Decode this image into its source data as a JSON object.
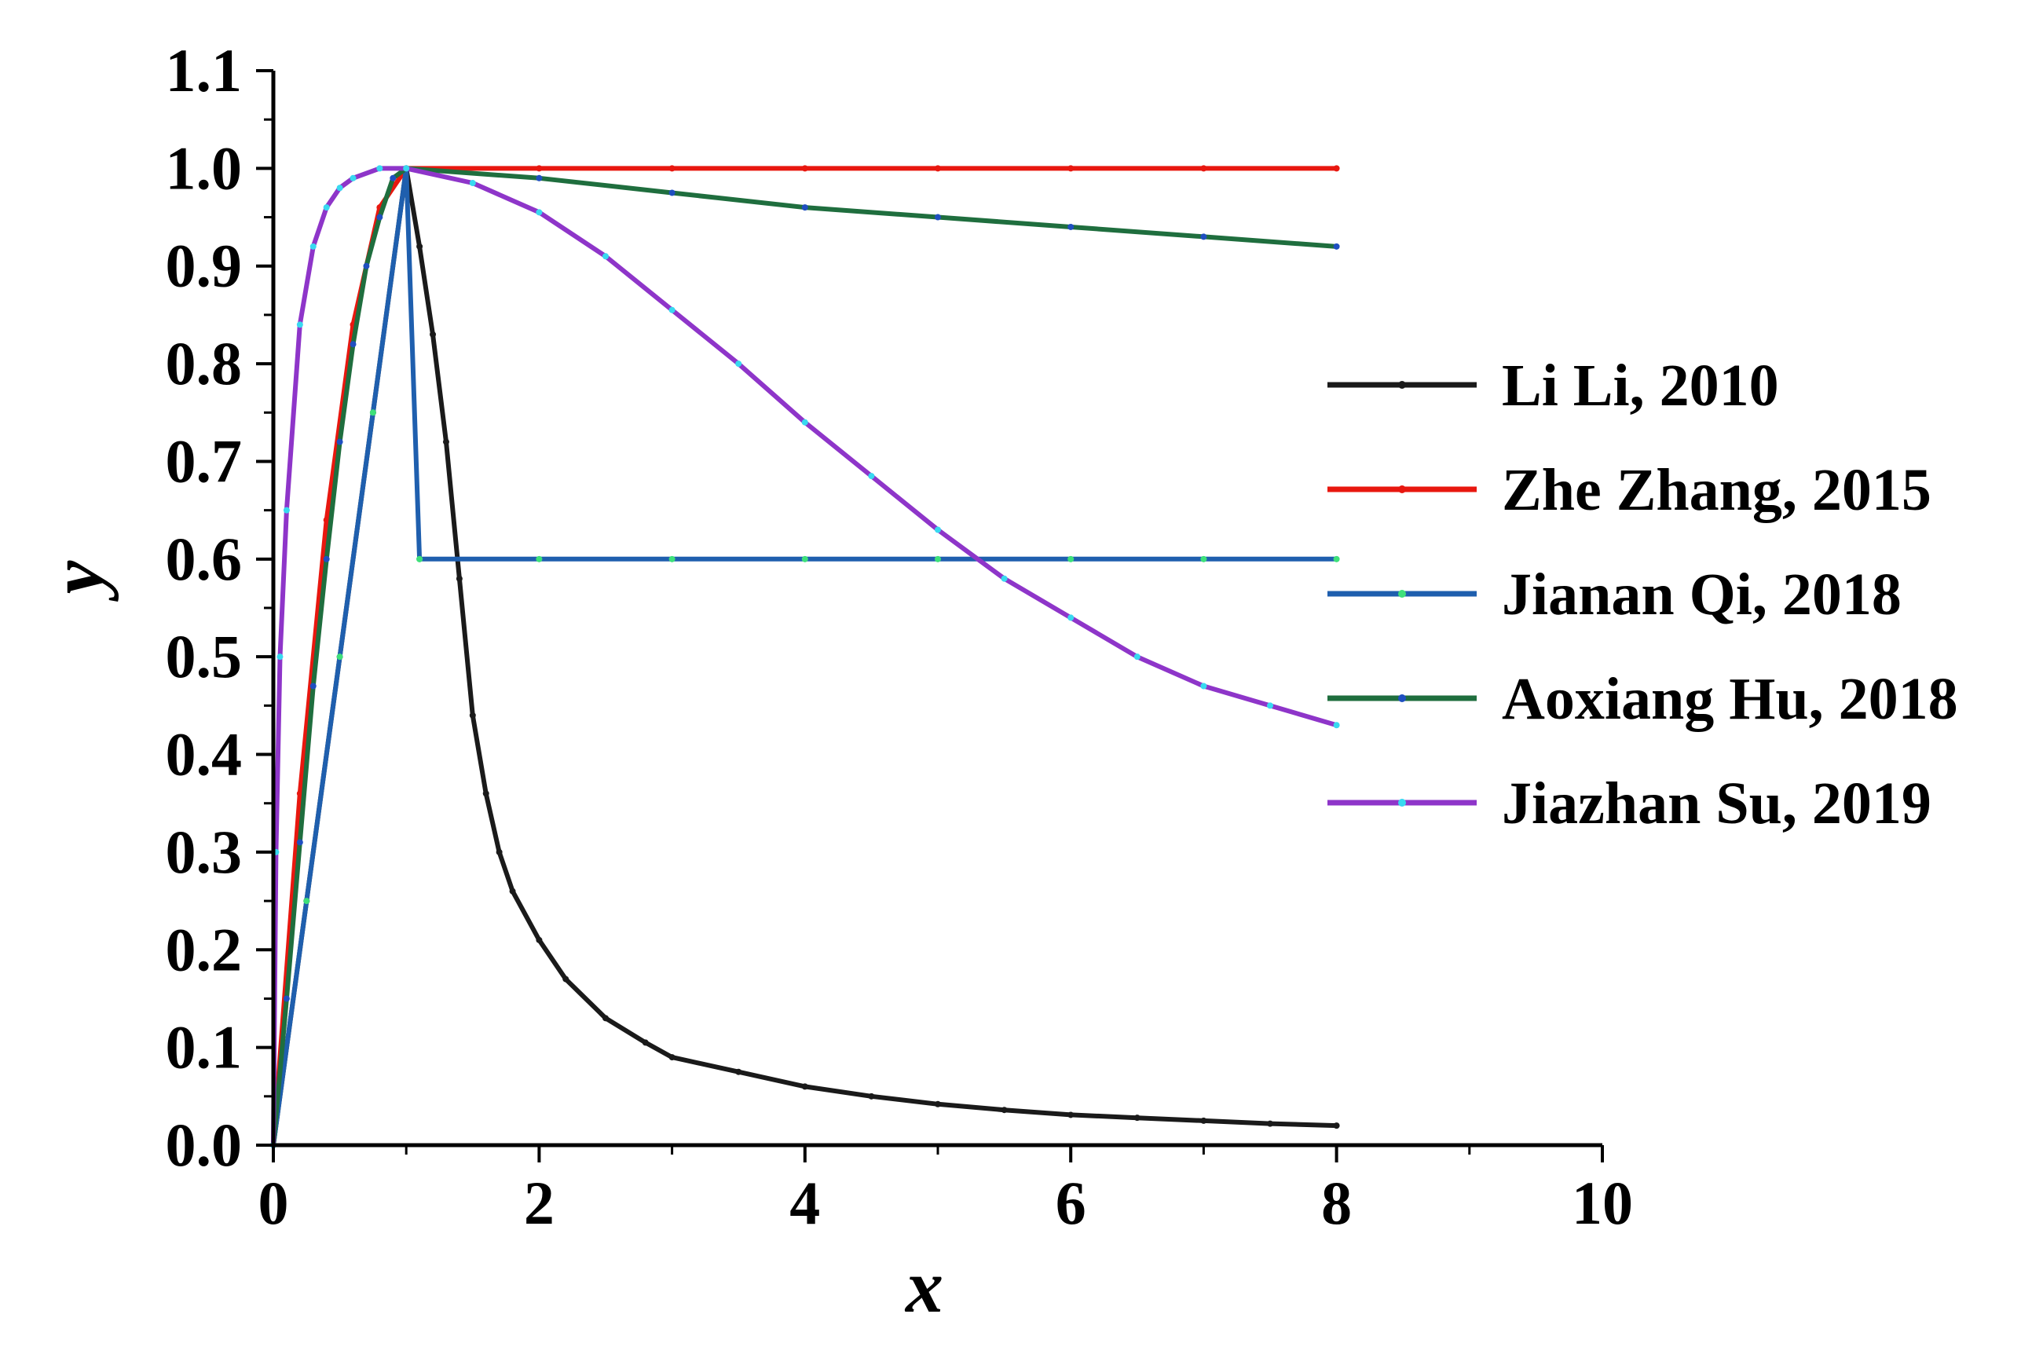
{
  "chart_data": {
    "type": "line",
    "title": "",
    "xlabel": "x",
    "ylabel": "y",
    "xlim": [
      0,
      10
    ],
    "ylim": [
      0,
      1.1
    ],
    "xticks": [
      "0",
      "2",
      "4",
      "6",
      "8",
      "10"
    ],
    "yticks": [
      "0.0",
      "0.1",
      "0.2",
      "0.3",
      "0.4",
      "0.5",
      "0.6",
      "0.7",
      "0.8",
      "0.9",
      "1.0",
      "1.1"
    ],
    "grid": false,
    "legend_position": "right",
    "series": [
      {
        "name": "Li Li, 2010",
        "color": "#1a1a1a",
        "marker_color": "#1a1a1a",
        "x": [
          0,
          0.25,
          0.5,
          0.75,
          1.0,
          1.1,
          1.2,
          1.3,
          1.4,
          1.5,
          1.6,
          1.7,
          1.8,
          2.0,
          2.2,
          2.5,
          2.8,
          3.0,
          3.5,
          4.0,
          4.5,
          5.0,
          5.5,
          6.0,
          6.5,
          7.0,
          7.5,
          8.0
        ],
        "y": [
          0,
          0.25,
          0.5,
          0.75,
          1.0,
          0.92,
          0.83,
          0.72,
          0.58,
          0.44,
          0.36,
          0.3,
          0.26,
          0.21,
          0.17,
          0.13,
          0.105,
          0.09,
          0.075,
          0.06,
          0.05,
          0.042,
          0.036,
          0.031,
          0.028,
          0.025,
          0.022,
          0.02
        ]
      },
      {
        "name": "Zhe Zhang, 2015",
        "color": "#e8170f",
        "marker_color": "#e8170f",
        "x": [
          0,
          0.2,
          0.4,
          0.6,
          0.8,
          1.0,
          2.0,
          3.0,
          4.0,
          5.0,
          6.0,
          7.0,
          8.0
        ],
        "y": [
          0,
          0.36,
          0.64,
          0.84,
          0.96,
          1.0,
          1.0,
          1.0,
          1.0,
          1.0,
          1.0,
          1.0,
          1.0
        ]
      },
      {
        "name": "Jianan Qi, 2018",
        "color": "#1f5fae",
        "marker_color": "#3ee07a",
        "x": [
          0,
          0.25,
          0.5,
          0.75,
          1.0,
          1.1,
          1.1,
          2.0,
          3.0,
          4.0,
          5.0,
          6.0,
          7.0,
          8.0
        ],
        "y": [
          0,
          0.25,
          0.5,
          0.75,
          1.0,
          0.6,
          0.6,
          0.6,
          0.6,
          0.6,
          0.6,
          0.6,
          0.6,
          0.6
        ]
      },
      {
        "name": "Aoxiang Hu, 2018",
        "color": "#1f6e3e",
        "marker_color": "#1f4fc0",
        "x": [
          0,
          0.1,
          0.2,
          0.3,
          0.4,
          0.5,
          0.6,
          0.7,
          0.8,
          0.9,
          1.0,
          2.0,
          3.0,
          4.0,
          5.0,
          6.0,
          7.0,
          8.0
        ],
        "y": [
          0,
          0.15,
          0.31,
          0.47,
          0.6,
          0.72,
          0.82,
          0.9,
          0.95,
          0.99,
          1.0,
          0.99,
          0.975,
          0.96,
          0.95,
          0.94,
          0.93,
          0.92
        ]
      },
      {
        "name": "Jiazhan Su, 2019",
        "color": "#8e35c9",
        "marker_color": "#38d9f0",
        "x": [
          0,
          0.02,
          0.05,
          0.1,
          0.2,
          0.3,
          0.4,
          0.5,
          0.6,
          0.8,
          1.0,
          1.5,
          2.0,
          2.5,
          3.0,
          3.5,
          4.0,
          4.5,
          5.0,
          5.5,
          6.0,
          6.5,
          7.0,
          7.5,
          8.0
        ],
        "y": [
          0,
          0.3,
          0.5,
          0.65,
          0.84,
          0.92,
          0.96,
          0.98,
          0.99,
          1.0,
          1.0,
          0.985,
          0.955,
          0.91,
          0.855,
          0.8,
          0.74,
          0.685,
          0.63,
          0.58,
          0.54,
          0.5,
          0.47,
          0.45,
          0.43
        ]
      }
    ]
  }
}
